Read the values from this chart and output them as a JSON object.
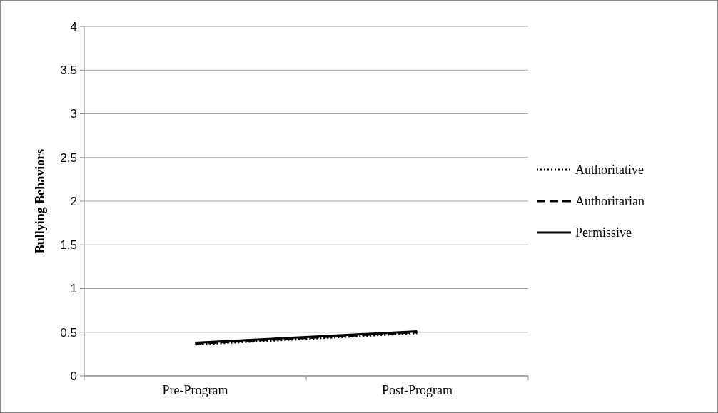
{
  "chart_data": {
    "type": "line",
    "ylabel": "Bullying Behaviors",
    "categories": [
      "Pre-Program",
      "Post-Program"
    ],
    "ylim": [
      0,
      4
    ],
    "yticks": [
      0,
      0.5,
      1,
      1.5,
      2,
      2.5,
      3,
      3.5,
      4
    ],
    "grid": "y",
    "legend": "right",
    "series": [
      {
        "name": "Authoritative",
        "color": "#000000",
        "line_style": "dotted",
        "values": [
          0.36,
          0.49
        ]
      },
      {
        "name": "Authoritarian",
        "color": "#000000",
        "line_style": "dashed",
        "values": [
          0.37,
          0.5
        ]
      },
      {
        "name": "Permissive",
        "color": "#000000",
        "line_style": "solid",
        "values": [
          0.38,
          0.51
        ]
      }
    ]
  }
}
